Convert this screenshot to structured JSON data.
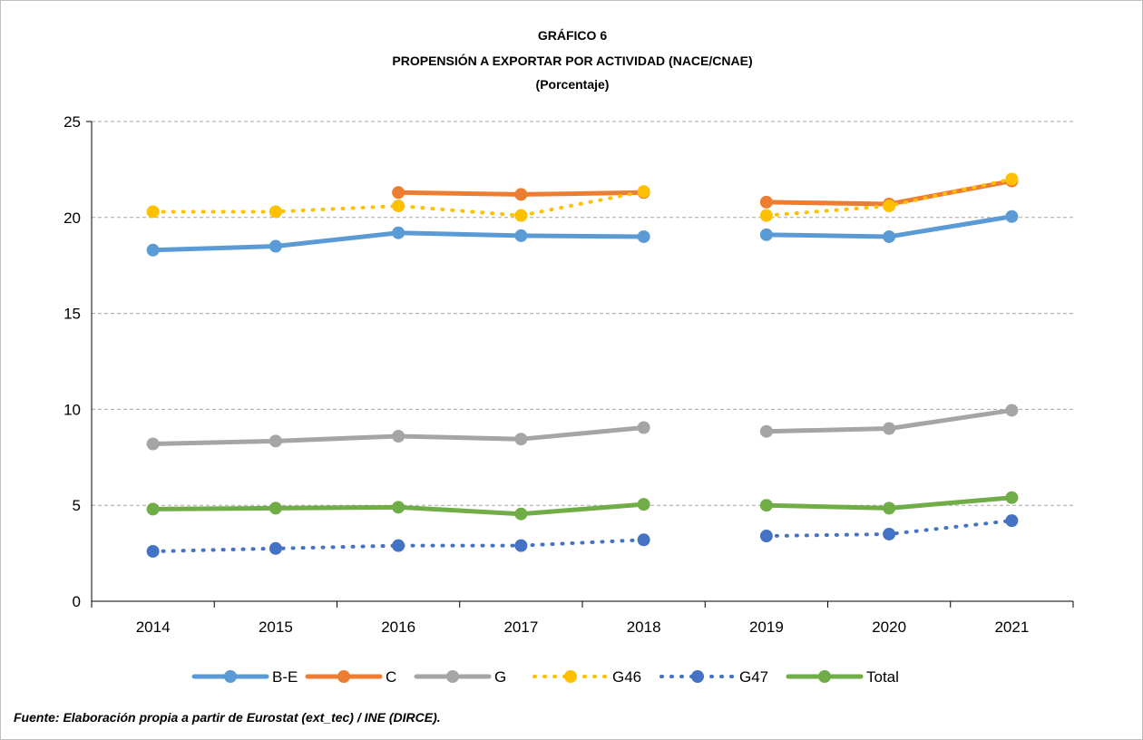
{
  "chart_data": {
    "type": "line",
    "title": "GRÁFICO 6",
    "subtitle": "PROPENSIÓN A EXPORTAR POR ACTIVIDAD (NACE/CNAE)",
    "unit_label": "(Porcentaje)",
    "xlabel": "",
    "ylabel": "",
    "ylim": [
      0,
      25
    ],
    "yticks": [
      0,
      5,
      10,
      15,
      20,
      25
    ],
    "categories": [
      "2014",
      "2015",
      "2016",
      "2017",
      "2018",
      "2019",
      "2020",
      "2021"
    ],
    "grid": true,
    "legend_position": "bottom",
    "series": [
      {
        "name": "B-E",
        "color": "#5b9bd5",
        "dashed": false,
        "values": [
          18.3,
          18.5,
          19.2,
          19.05,
          19.0,
          19.1,
          19.0,
          20.05
        ]
      },
      {
        "name": "C",
        "color": "#ed7d31",
        "dashed": false,
        "values": [
          null,
          null,
          21.3,
          21.2,
          21.3,
          20.8,
          20.7,
          21.9
        ]
      },
      {
        "name": "G",
        "color": "#a5a5a5",
        "dashed": false,
        "values": [
          8.2,
          8.35,
          8.6,
          8.45,
          9.05,
          8.85,
          9.0,
          9.95
        ]
      },
      {
        "name": "G46",
        "color": "#ffc000",
        "dashed": true,
        "values": [
          20.3,
          20.3,
          20.6,
          20.1,
          21.35,
          20.1,
          20.6,
          22.0
        ]
      },
      {
        "name": "G47",
        "color": "#4472c4",
        "dashed": true,
        "values": [
          2.6,
          2.75,
          2.9,
          2.9,
          3.2,
          3.4,
          3.5,
          4.2
        ]
      },
      {
        "name": "Total",
        "color": "#70ad47",
        "dashed": false,
        "values": [
          4.8,
          4.85,
          4.9,
          4.55,
          5.05,
          5.0,
          4.85,
          5.4
        ]
      }
    ],
    "gap_after_category": "2018"
  },
  "source_note": "Fuente: Elaboración propia a partir de Eurostat (ext_tec) / INE (DIRCE)."
}
